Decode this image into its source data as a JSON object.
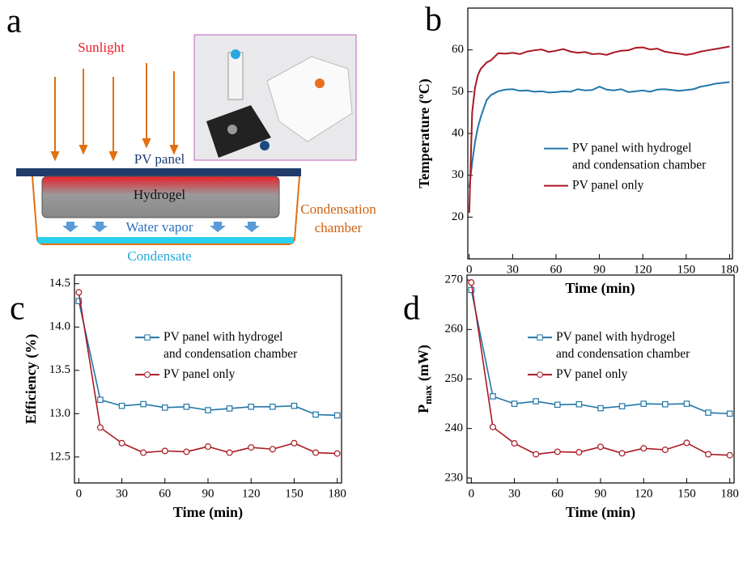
{
  "diagram": {
    "panel_label": "a",
    "sunlight": "Sunlight",
    "pv_panel": "PV panel",
    "hydrogel": "Hydrogel",
    "water_vapor": "Water vapor",
    "condensation_chamber": [
      "Condensation",
      "chamber"
    ],
    "condensate": "Condensate"
  },
  "chart_data": [
    {
      "type": "line",
      "panel_label": "b",
      "x_label": "Time (min)",
      "y_label": "Temperature (ºC)",
      "x": [
        0,
        2,
        4,
        6,
        8,
        10,
        12,
        15,
        20,
        25,
        30,
        35,
        40,
        45,
        50,
        55,
        60,
        65,
        70,
        75,
        80,
        85,
        90,
        95,
        100,
        105,
        110,
        115,
        120,
        125,
        130,
        135,
        140,
        145,
        150,
        155,
        160,
        165,
        170,
        175,
        180
      ],
      "series": [
        {
          "name": "PV panel with hydrogel\nand condensation chamber",
          "color": "#2277aa",
          "values": [
            27,
            33,
            38,
            41.5,
            44,
            46,
            48,
            49.2,
            50.1,
            50.5,
            50.6,
            50.2,
            50.3,
            50.0,
            50.1,
            49.8,
            49.9,
            50.1,
            50.0,
            50.6,
            50.3,
            50.4,
            51.2,
            50.5,
            50.3,
            50.6,
            49.9,
            50.1,
            50.3,
            50.0,
            50.5,
            50.6,
            50.4,
            50.2,
            50.4,
            50.6,
            51.2,
            51.5,
            51.9,
            52.1,
            52.3
          ]
        },
        {
          "name": "PV panel only",
          "color": "#aa1822",
          "values": [
            21,
            45,
            51,
            54,
            55.5,
            56.2,
            57,
            57.5,
            59.2,
            59.1,
            59.3,
            59.0,
            59.6,
            59.9,
            60.1,
            59.5,
            59.8,
            60.2,
            59.6,
            59.3,
            59.5,
            59.0,
            59.1,
            58.8,
            59.4,
            59.8,
            59.9,
            60.5,
            60.6,
            60.1,
            60.3,
            59.6,
            59.3,
            59.1,
            58.8,
            59.1,
            59.6,
            59.9,
            60.2,
            60.5,
            60.8
          ]
        }
      ],
      "xlim": [
        -1,
        182
      ],
      "ylim": [
        10,
        70
      ],
      "xticks": [
        0,
        30,
        60,
        90,
        120,
        150,
        180
      ],
      "yticks": [
        20,
        30,
        40,
        50,
        60
      ],
      "legend": "center right"
    },
    {
      "type": "line",
      "panel_label": "c",
      "x_label": "Time (min)",
      "y_label": "Efficiency (%)",
      "x": [
        0,
        15,
        30,
        45,
        60,
        75,
        90,
        105,
        120,
        135,
        150,
        165,
        180
      ],
      "series": [
        {
          "name": "PV panel with hydrogel\nand condensation chamber",
          "color": "#2277aa",
          "marker": "square",
          "values": [
            14.3,
            13.16,
            13.09,
            13.11,
            13.07,
            13.08,
            13.04,
            13.06,
            13.08,
            13.08,
            13.09,
            12.99,
            12.98
          ]
        },
        {
          "name": "PV panel only",
          "color": "#aa1822",
          "marker": "circle",
          "values": [
            14.4,
            12.84,
            12.66,
            12.55,
            12.57,
            12.56,
            12.62,
            12.55,
            12.61,
            12.59,
            12.66,
            12.55,
            12.54
          ]
        }
      ],
      "xlim": [
        -3,
        183
      ],
      "ylim": [
        12.2,
        14.6
      ],
      "xticks": [
        0,
        30,
        60,
        90,
        120,
        150,
        180
      ],
      "yticks": [
        12.5,
        {
          "value": 13,
          "label": "13.0"
        },
        13.5,
        {
          "value": 14,
          "label": "14.0"
        },
        14.5
      ],
      "legend": "upper right"
    },
    {
      "type": "line",
      "panel_label": "d",
      "x_label": "Time (min)",
      "y_label": "P",
      "y_label_subscript": "max",
      "y_label_unit": "(mW)",
      "x": [
        0,
        15,
        30,
        45,
        60,
        75,
        90,
        105,
        120,
        135,
        150,
        165,
        180
      ],
      "series": [
        {
          "name": "PV panel with hydrogel\nand condensation chamber",
          "color": "#2277aa",
          "marker": "square",
          "values": [
            268,
            246.5,
            245,
            245.5,
            244.8,
            244.9,
            244.1,
            244.5,
            245,
            244.9,
            245,
            243.2,
            243
          ]
        },
        {
          "name": "PV panel only",
          "color": "#aa1822",
          "marker": "circle",
          "values": [
            269.5,
            240.3,
            237,
            234.8,
            235.3,
            235.2,
            236.3,
            235,
            236,
            235.7,
            237.1,
            234.8,
            234.6
          ]
        }
      ],
      "xlim": [
        -3,
        183
      ],
      "ylim": [
        229,
        271
      ],
      "xticks": [
        0,
        30,
        60,
        90,
        120,
        150,
        180
      ],
      "yticks": [
        230,
        240,
        250,
        260,
        270
      ],
      "legend": "upper right"
    }
  ]
}
